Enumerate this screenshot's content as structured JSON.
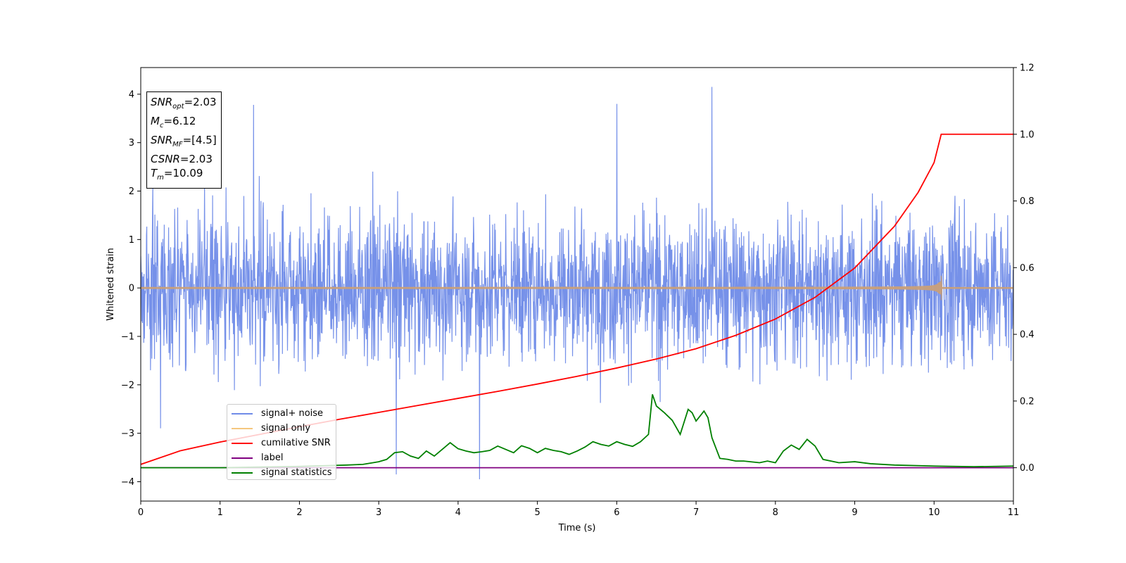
{
  "chart_data": {
    "type": "line",
    "xlabel": "Time (s)",
    "ylabel": "Whitened strain",
    "xlim": [
      0,
      11
    ],
    "ylim": [
      -4.4,
      4.55
    ],
    "y2lim": [
      -0.1,
      1.2
    ],
    "x_ticks": [
      "0",
      "1",
      "2",
      "3",
      "4",
      "5",
      "6",
      "7",
      "8",
      "9",
      "10",
      "11"
    ],
    "y_ticks": [
      "4",
      "3",
      "2",
      "1",
      "0",
      "−1",
      "−2",
      "−3",
      "−4"
    ],
    "y2_ticks": [
      "1.2",
      "1.0",
      "0.8",
      "0.6",
      "0.4",
      "0.2",
      "0.0"
    ],
    "grid": false,
    "legend_position": "lower-left",
    "annotation": {
      "snr_opt": "=2.03",
      "mc": "=6.12",
      "snr_mf": "=[4.5]",
      "csnr": "=2.03",
      "tm": "=10.09"
    },
    "series": [
      {
        "name": "signal+ noise",
        "color": "#6f8be8",
        "axis": "left",
        "kind": "noise",
        "x_range": [
          0,
          11
        ],
        "approx_range": [
          -3.95,
          4.15
        ],
        "notable_peaks": [
          [
            1.42,
            3.78
          ],
          [
            6.0,
            3.8
          ],
          [
            7.2,
            4.17
          ],
          [
            3.22,
            -3.85
          ],
          [
            4.27,
            -3.95
          ]
        ]
      },
      {
        "name": "signal only",
        "color": "#c9a07a",
        "axis": "left",
        "kind": "chirp",
        "x_range": [
          0,
          11
        ],
        "merger_time": 10.09,
        "peak_amplitude": 0.22
      },
      {
        "name": "cumilative SNR",
        "color": "#ff0000",
        "axis": "right",
        "x": [
          0,
          0.5,
          1,
          1.5,
          2,
          2.5,
          3,
          3.5,
          4,
          4.5,
          5,
          5.5,
          6,
          6.5,
          7,
          7.5,
          8,
          8.5,
          9,
          9.5,
          9.8,
          10,
          10.09,
          11
        ],
        "values": [
          0.01,
          0.051,
          0.077,
          0.1,
          0.123,
          0.145,
          0.166,
          0.187,
          0.208,
          0.229,
          0.251,
          0.274,
          0.299,
          0.326,
          0.357,
          0.397,
          0.446,
          0.511,
          0.599,
          0.724,
          0.826,
          0.915,
          1.0,
          1.0
        ]
      },
      {
        "name": "label",
        "color": "#800080",
        "axis": "right",
        "x": [
          0,
          11
        ],
        "values": [
          0.0,
          0.0
        ]
      },
      {
        "name": "signal statistics",
        "color": "#008000",
        "axis": "right",
        "x": [
          0,
          0.5,
          1,
          1.5,
          2,
          2.3,
          2.6,
          2.8,
          3.0,
          3.1,
          3.2,
          3.3,
          3.4,
          3.5,
          3.6,
          3.7,
          3.8,
          3.9,
          4.0,
          4.1,
          4.2,
          4.3,
          4.4,
          4.5,
          4.6,
          4.7,
          4.8,
          4.9,
          5.0,
          5.1,
          5.2,
          5.3,
          5.4,
          5.5,
          5.6,
          5.7,
          5.8,
          5.9,
          6.0,
          6.1,
          6.2,
          6.3,
          6.4,
          6.45,
          6.5,
          6.6,
          6.7,
          6.8,
          6.9,
          6.95,
          7.0,
          7.1,
          7.15,
          7.2,
          7.3,
          7.4,
          7.5,
          7.6,
          7.8,
          7.9,
          8.0,
          8.1,
          8.2,
          8.3,
          8.4,
          8.5,
          8.6,
          8.8,
          9.0,
          9.2,
          9.5,
          10.0,
          10.5,
          11.0
        ],
        "values": [
          0.0,
          0.0,
          0.0,
          0.002,
          0.004,
          0.006,
          0.008,
          0.01,
          0.018,
          0.025,
          0.045,
          0.048,
          0.035,
          0.028,
          0.05,
          0.035,
          0.055,
          0.075,
          0.057,
          0.05,
          0.045,
          0.048,
          0.052,
          0.065,
          0.055,
          0.045,
          0.066,
          0.058,
          0.045,
          0.058,
          0.052,
          0.048,
          0.04,
          0.05,
          0.062,
          0.078,
          0.07,
          0.065,
          0.078,
          0.07,
          0.064,
          0.078,
          0.1,
          0.22,
          0.185,
          0.165,
          0.142,
          0.1,
          0.175,
          0.165,
          0.14,
          0.17,
          0.15,
          0.09,
          0.028,
          0.025,
          0.02,
          0.02,
          0.015,
          0.02,
          0.015,
          0.05,
          0.068,
          0.055,
          0.085,
          0.065,
          0.025,
          0.015,
          0.018,
          0.012,
          0.008,
          0.005,
          0.003,
          0.005
        ]
      }
    ]
  }
}
